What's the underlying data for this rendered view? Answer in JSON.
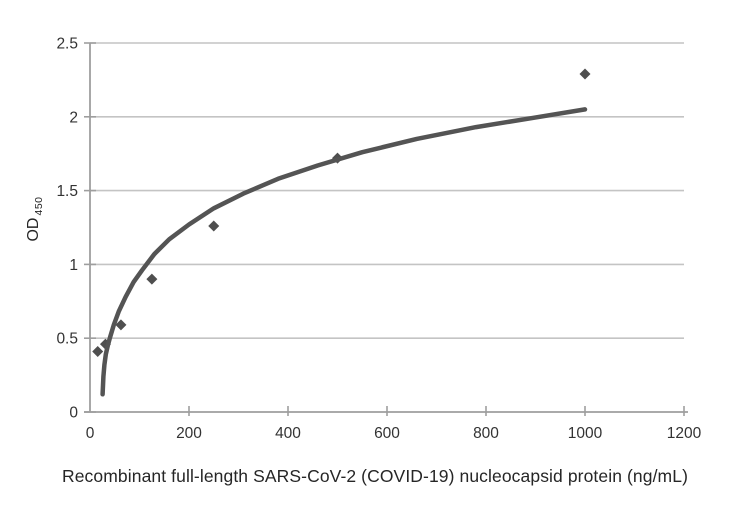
{
  "figure": {
    "background": "#ffffff"
  },
  "chart_data": {
    "type": "scatter",
    "title": "",
    "xlabel": "Recombinant full-length SARS-CoV-2 (COVID-19) nucleocapsid protein (ng/mL)",
    "ylabel": "OD 450",
    "ylabel_main": "OD",
    "ylabel_sub": "450",
    "xlim": [
      0,
      1200
    ],
    "ylim": [
      0,
      2.5
    ],
    "x_ticks": [
      0,
      200,
      400,
      600,
      800,
      1000,
      1200
    ],
    "y_ticks": [
      0,
      0.5,
      1,
      1.5,
      2,
      2.5
    ],
    "grid": "horizontal-only",
    "legend": "none",
    "series": [
      {
        "name": "standard-curve-points",
        "type": "scatter",
        "marker": "diamond",
        "x": [
          15.6,
          31.25,
          62.5,
          125,
          250,
          500,
          1000
        ],
        "y": [
          0.41,
          0.46,
          0.59,
          0.9,
          1.26,
          1.72,
          2.29
        ]
      },
      {
        "name": "logarithmic-trend-line",
        "type": "line",
        "x": [
          25.5,
          27,
          29,
          32,
          36,
          40,
          48,
          58,
          72,
          88,
          105,
          130,
          160,
          200,
          250,
          310,
          380,
          460,
          550,
          660,
          780,
          890,
          1000
        ],
        "y": [
          0.12,
          0.24,
          0.32,
          0.39,
          0.45,
          0.5,
          0.59,
          0.68,
          0.78,
          0.88,
          0.96,
          1.07,
          1.17,
          1.27,
          1.38,
          1.48,
          1.58,
          1.67,
          1.76,
          1.85,
          1.93,
          1.99,
          2.05
        ]
      }
    ],
    "colors": {
      "marker": "#4f4f4f",
      "trend": "#545454",
      "gridline": "#c4c4c4",
      "axis": "#9e9e9e",
      "tick_label": "#333333",
      "axis_title": "#262626",
      "background": "#ffffff"
    }
  }
}
